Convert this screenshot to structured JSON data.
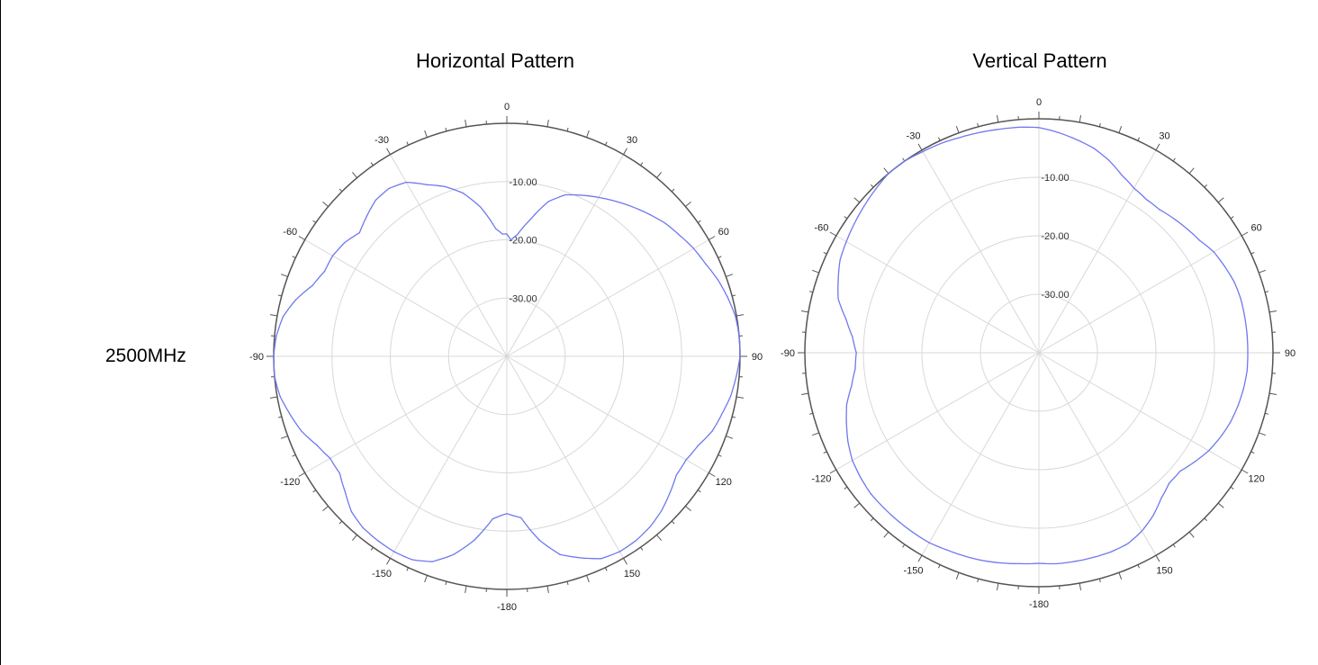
{
  "frequency_label": "2500MHz",
  "colors": {
    "trace": "#6f78ee",
    "grid": "#d8d8d8",
    "outer": "#555555"
  },
  "chart_data": [
    {
      "type": "polar-line",
      "title": "Horizontal Pattern",
      "angle_labels": [
        "0",
        "30",
        "60",
        "90",
        "120",
        "150",
        "-180",
        "-150",
        "-120",
        "-90",
        "-60",
        "-30"
      ],
      "ring_labels": [
        "-10.00",
        "-20.00",
        "-30.00"
      ],
      "r_range_db": [
        -40,
        0
      ],
      "grid": true,
      "series": [
        {
          "angles_deg": [
            0,
            2,
            5,
            10,
            15,
            20,
            25,
            30,
            35,
            40,
            45,
            50,
            55,
            60,
            65,
            70,
            75,
            80,
            85,
            90,
            95,
            100,
            105,
            110,
            115,
            120,
            125,
            130,
            135,
            140,
            145,
            150,
            155,
            160,
            165,
            170,
            175,
            178,
            180,
            182,
            185,
            190,
            195,
            200,
            205,
            210,
            215,
            220,
            225,
            230,
            235,
            240,
            245,
            250,
            255,
            260,
            265,
            270,
            275,
            280,
            285,
            290,
            295,
            300,
            305,
            310,
            315,
            320,
            325,
            330,
            335,
            340,
            345,
            350,
            355,
            358
          ],
          "gain_db": [
            -19,
            -20,
            -19,
            -16,
            -12.5,
            -10.5,
            -9.5,
            -8.5,
            -7.5,
            -6.5,
            -5.5,
            -4.5,
            -3.8,
            -3,
            -2.4,
            -1.5,
            -0.8,
            -0.2,
            0,
            0,
            -0.5,
            -1,
            -1.8,
            -2.5,
            -3.8,
            -4.5,
            -4.5,
            -3.5,
            -2.5,
            -1.8,
            -1.4,
            -1.3,
            -1.7,
            -3.2,
            -4.8,
            -8,
            -12.2,
            -12.7,
            -13,
            -12.7,
            -12,
            -8,
            -4.8,
            -2.5,
            -1.5,
            -1.3,
            -1.4,
            -1.6,
            -2.3,
            -3.8,
            -5,
            -5,
            -4,
            -2.5,
            -1.5,
            -0.5,
            0,
            0,
            -0.3,
            -1,
            -2.5,
            -4.5,
            -5.5,
            -5.5,
            -6,
            -7,
            -6,
            -5,
            -4.8,
            -5.5,
            -7.5,
            -9,
            -11,
            -14,
            -18,
            -19
          ]
        }
      ]
    },
    {
      "type": "polar-line",
      "title": "Vertical Pattern",
      "angle_labels": [
        "0",
        "30",
        "60",
        "90",
        "120",
        "150",
        "-180",
        "-150",
        "-120",
        "-90",
        "-60",
        "-30"
      ],
      "ring_labels": [
        "-10.00",
        "-20.00",
        "-30.00"
      ],
      "r_range_db": [
        -40,
        0
      ],
      "grid": true,
      "series": [
        {
          "angles_deg": [
            0,
            5,
            10,
            15,
            20,
            25,
            30,
            35,
            40,
            45,
            50,
            55,
            60,
            65,
            70,
            75,
            80,
            85,
            90,
            95,
            100,
            105,
            110,
            115,
            120,
            125,
            130,
            135,
            140,
            145,
            150,
            155,
            160,
            165,
            170,
            175,
            180,
            185,
            190,
            195,
            200,
            205,
            210,
            215,
            220,
            225,
            230,
            235,
            240,
            245,
            250,
            255,
            260,
            265,
            270,
            275,
            280,
            285,
            290,
            295,
            300,
            305,
            310,
            315,
            320,
            325,
            330,
            335,
            340,
            345,
            350,
            355
          ],
          "gain_db": [
            -1.5,
            -2.2,
            -3,
            -3.8,
            -5,
            -6.5,
            -7.5,
            -8,
            -8,
            -7.5,
            -7,
            -6.5,
            -5.5,
            -5,
            -4.5,
            -4.3,
            -4.3,
            -4.3,
            -4.3,
            -4.3,
            -4.5,
            -4.8,
            -5.2,
            -5.8,
            -6.5,
            -7.5,
            -8.5,
            -8.5,
            -7.5,
            -6,
            -4.8,
            -4,
            -3.8,
            -3.8,
            -3.8,
            -3.8,
            -4,
            -3.8,
            -3.5,
            -3.2,
            -3,
            -2.8,
            -2.5,
            -2.5,
            -2.5,
            -2.5,
            -2.5,
            -2.8,
            -3.2,
            -4,
            -5,
            -6,
            -7.5,
            -8.5,
            -8.8,
            -8,
            -6.5,
            -4.5,
            -3.5,
            -2.5,
            -2,
            -1.5,
            -1,
            -0.5,
            0,
            0,
            -0.3,
            -0.5,
            -0.8,
            -1,
            -1.2,
            -1.3
          ]
        }
      ]
    }
  ]
}
